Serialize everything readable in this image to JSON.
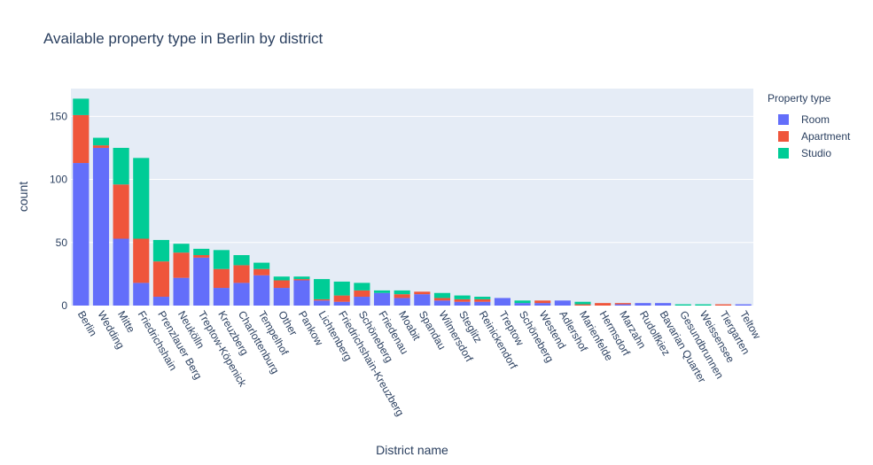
{
  "chart_data": {
    "type": "bar",
    "barmode": "stack",
    "title": "Available property type in Berlin by district",
    "xlabel": "District name",
    "ylabel": "count",
    "ylim": [
      0,
      172
    ],
    "yticks": [
      0,
      50,
      100,
      150
    ],
    "grid": true,
    "legend": {
      "title": "Property type",
      "placement": "top-right"
    },
    "categories": [
      "Berlin",
      "Wedding",
      "Mitte",
      "Friedrichshain",
      "Prenzlauer Berg",
      "Neukölln",
      "Treptow-Köpenick",
      "Kreuzberg",
      "Charlottenburg",
      "Tempelhof",
      "Other",
      "Pankow",
      "Lichtenberg",
      "Friedrichshain-Kreuzberg",
      "Schöneberg",
      "Friedenau",
      "Moabit",
      "Spandau",
      "Wilmersdorf",
      "Steglitz",
      "Reinickendorf",
      "Treptow",
      "Schöneberg",
      "Westend",
      "Adlershof",
      "Marienfelde",
      "Hermsdorf",
      "Marzahn",
      "Rudolfkiez",
      "Bavarian Quarter",
      "Gesundbrunnen",
      "Weissensee",
      "Tiergarten",
      "Teltow"
    ],
    "series": [
      {
        "name": "Room",
        "color": "#636efa",
        "values": [
          113,
          125,
          53,
          18,
          7,
          22,
          38,
          14,
          18,
          24,
          14,
          20,
          4,
          3,
          7,
          10,
          6,
          9,
          4,
          3,
          3,
          6,
          2,
          2,
          4,
          0,
          0,
          1,
          2,
          2,
          0,
          0,
          0,
          1
        ]
      },
      {
        "name": "Apartment",
        "color": "#ef553b",
        "values": [
          38,
          2,
          43,
          35,
          28,
          20,
          2,
          15,
          14,
          5,
          6,
          1,
          1,
          5,
          5,
          0,
          3,
          2,
          2,
          2,
          2,
          0,
          0,
          2,
          0,
          1,
          2,
          1,
          0,
          0,
          0,
          0,
          1,
          0
        ]
      },
      {
        "name": "Studio",
        "color": "#00cc96",
        "values": [
          13,
          6,
          29,
          64,
          17,
          7,
          5,
          15,
          8,
          5,
          3,
          2,
          16,
          11,
          6,
          2,
          3,
          0,
          4,
          3,
          2,
          0,
          2,
          0,
          0,
          2,
          0,
          0,
          0,
          0,
          1,
          1,
          0,
          0
        ]
      }
    ]
  }
}
